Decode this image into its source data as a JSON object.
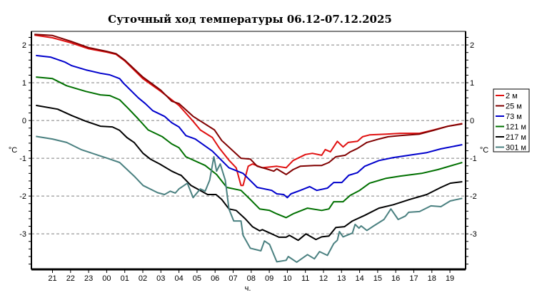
{
  "chart_data": {
    "type": "line",
    "title": "Суточный ход температуры 06.12-07.12.2025",
    "xlabel": "ч.",
    "ylabel": "°C",
    "ylabel_right": "°C",
    "xlim": [
      "19:50",
      "19:52"
    ],
    "ylim": [
      -3.94,
      2.36
    ],
    "x_ticks": [
      "21",
      "22",
      "23",
      "00",
      "01",
      "02",
      "03",
      "04",
      "05",
      "06",
      "07",
      "08",
      "09",
      "10",
      "11",
      "12",
      "13",
      "14",
      "15",
      "16",
      "17",
      "18",
      "19"
    ],
    "y_ticks": [
      2,
      1,
      0,
      -1,
      -2,
      -3
    ],
    "grid": "horizontal dashed",
    "legend_position": "right",
    "series": [
      {
        "name": "2 м",
        "color": "#e01010",
        "points": [
          [
            "20:00",
            2.26
          ],
          [
            "21:00",
            2.19
          ],
          [
            "22:00",
            2.06
          ],
          [
            "23:00",
            1.9
          ],
          [
            "00:00",
            1.81
          ],
          [
            "00:31",
            1.75
          ],
          [
            "01:00",
            1.58
          ],
          [
            "02:00",
            1.11
          ],
          [
            "03:00",
            0.77
          ],
          [
            "04:00",
            0.4
          ],
          [
            "04:47",
            -0.02
          ],
          [
            "05:11",
            -0.25
          ],
          [
            "05:51",
            -0.45
          ],
          [
            "06:15",
            -0.74
          ],
          [
            "06:46",
            -1.05
          ],
          [
            "07:10",
            -1.25
          ],
          [
            "07:26",
            -1.72
          ],
          [
            "07:33",
            -1.72
          ],
          [
            "07:50",
            -1.21
          ],
          [
            "08:04",
            -1.15
          ],
          [
            "08:37",
            -1.25
          ],
          [
            "09:25",
            -1.21
          ],
          [
            "09:56",
            -1.25
          ],
          [
            "10:19",
            -1.06
          ],
          [
            "11:00",
            -0.9
          ],
          [
            "11:23",
            -0.87
          ],
          [
            "11:54",
            -0.92
          ],
          [
            "12:06",
            -0.77
          ],
          [
            "12:23",
            -0.83
          ],
          [
            "12:46",
            -0.55
          ],
          [
            "13:05",
            -0.7
          ],
          [
            "13:22",
            -0.58
          ],
          [
            "13:53",
            -0.55
          ],
          [
            "14:10",
            -0.43
          ],
          [
            "14:33",
            -0.38
          ],
          [
            "15:28",
            -0.36
          ],
          [
            "16:15",
            -0.34
          ],
          [
            "17:19",
            -0.34
          ],
          [
            "18:06",
            -0.25
          ],
          [
            "18:54",
            -0.15
          ],
          [
            "19:41",
            -0.08
          ]
        ]
      },
      {
        "name": "25 м",
        "color": "#800000",
        "points": [
          [
            "20:00",
            2.28
          ],
          [
            "21:00",
            2.25
          ],
          [
            "22:00",
            2.1
          ],
          [
            "23:00",
            1.93
          ],
          [
            "00:00",
            1.83
          ],
          [
            "00:31",
            1.77
          ],
          [
            "01:00",
            1.6
          ],
          [
            "02:00",
            1.15
          ],
          [
            "03:00",
            0.8
          ],
          [
            "03:36",
            0.51
          ],
          [
            "04:00",
            0.45
          ],
          [
            "04:47",
            0.11
          ],
          [
            "05:58",
            -0.25
          ],
          [
            "06:22",
            -0.53
          ],
          [
            "07:26",
            -1.0
          ],
          [
            "07:57",
            -1.02
          ],
          [
            "08:20",
            -1.21
          ],
          [
            "08:51",
            -1.28
          ],
          [
            "09:15",
            -1.34
          ],
          [
            "09:25",
            -1.28
          ],
          [
            "09:56",
            -1.43
          ],
          [
            "10:19",
            -1.3
          ],
          [
            "10:43",
            -1.21
          ],
          [
            "11:30",
            -1.19
          ],
          [
            "11:54",
            -1.19
          ],
          [
            "12:18",
            -1.11
          ],
          [
            "12:41",
            -0.96
          ],
          [
            "13:12",
            -0.92
          ],
          [
            "13:29",
            -0.83
          ],
          [
            "13:53",
            -0.74
          ],
          [
            "14:24",
            -0.58
          ],
          [
            "15:04",
            -0.49
          ],
          [
            "15:35",
            -0.43
          ],
          [
            "16:15",
            -0.4
          ],
          [
            "17:19",
            -0.36
          ],
          [
            "18:06",
            -0.26
          ],
          [
            "18:54",
            -0.15
          ],
          [
            "19:41",
            -0.09
          ]
        ]
      },
      {
        "name": "73 м",
        "color": "#0000cc",
        "points": [
          [
            "20:05",
            1.72
          ],
          [
            "20:53",
            1.68
          ],
          [
            "21:40",
            1.55
          ],
          [
            "22:04",
            1.45
          ],
          [
            "22:51",
            1.34
          ],
          [
            "23:39",
            1.25
          ],
          [
            "00:10",
            1.21
          ],
          [
            "00:43",
            1.11
          ],
          [
            "00:57",
            0.98
          ],
          [
            "01:45",
            0.6
          ],
          [
            "02:08",
            0.45
          ],
          [
            "02:33",
            0.26
          ],
          [
            "03:12",
            0.11
          ],
          [
            "03:36",
            -0.06
          ],
          [
            "04:00",
            -0.17
          ],
          [
            "04:23",
            -0.4
          ],
          [
            "04:54",
            -0.49
          ],
          [
            "05:51",
            -0.81
          ],
          [
            "06:46",
            -1.25
          ],
          [
            "07:33",
            -1.4
          ],
          [
            "08:20",
            -1.77
          ],
          [
            "09:08",
            -1.85
          ],
          [
            "09:25",
            -1.94
          ],
          [
            "09:48",
            -1.96
          ],
          [
            "10:00",
            -2.04
          ],
          [
            "10:12",
            -1.94
          ],
          [
            "10:43",
            -1.85
          ],
          [
            "11:14",
            -1.75
          ],
          [
            "11:38",
            -1.85
          ],
          [
            "12:13",
            -1.79
          ],
          [
            "12:34",
            -1.64
          ],
          [
            "13:01",
            -1.64
          ],
          [
            "13:24",
            -1.45
          ],
          [
            "13:53",
            -1.38
          ],
          [
            "14:17",
            -1.21
          ],
          [
            "15:04",
            -1.06
          ],
          [
            "15:52",
            -0.98
          ],
          [
            "17:02",
            -0.9
          ],
          [
            "17:43",
            -0.85
          ],
          [
            "18:30",
            -0.75
          ],
          [
            "19:41",
            -0.64
          ]
        ]
      },
      {
        "name": "121 м",
        "color": "#007000",
        "points": [
          [
            "20:05",
            1.15
          ],
          [
            "21:00",
            1.11
          ],
          [
            "21:47",
            0.92
          ],
          [
            "22:51",
            0.77
          ],
          [
            "23:39",
            0.68
          ],
          [
            "00:10",
            0.66
          ],
          [
            "00:43",
            0.55
          ],
          [
            "01:14",
            0.3
          ],
          [
            "01:45",
            0.04
          ],
          [
            "02:18",
            -0.25
          ],
          [
            "03:05",
            -0.43
          ],
          [
            "03:36",
            -0.62
          ],
          [
            "04:00",
            -0.72
          ],
          [
            "04:23",
            -0.96
          ],
          [
            "05:27",
            -1.19
          ],
          [
            "06:05",
            -1.43
          ],
          [
            "06:39",
            -1.77
          ],
          [
            "07:26",
            -1.85
          ],
          [
            "07:57",
            -2.09
          ],
          [
            "08:28",
            -2.34
          ],
          [
            "09:01",
            -2.38
          ],
          [
            "09:25",
            -2.47
          ],
          [
            "09:56",
            -2.57
          ],
          [
            "10:19",
            -2.47
          ],
          [
            "11:07",
            -2.32
          ],
          [
            "11:54",
            -2.38
          ],
          [
            "12:18",
            -2.34
          ],
          [
            "12:34",
            -2.15
          ],
          [
            "13:05",
            -2.15
          ],
          [
            "13:29",
            -1.98
          ],
          [
            "14:00",
            -1.85
          ],
          [
            "14:33",
            -1.66
          ],
          [
            "15:28",
            -1.53
          ],
          [
            "16:15",
            -1.47
          ],
          [
            "17:26",
            -1.4
          ],
          [
            "18:20",
            -1.3
          ],
          [
            "19:41",
            -1.11
          ]
        ]
      },
      {
        "name": "217 м",
        "color": "#000000",
        "points": [
          [
            "20:05",
            0.4
          ],
          [
            "21:17",
            0.3
          ],
          [
            "22:04",
            0.13
          ],
          [
            "22:51",
            -0.02
          ],
          [
            "23:39",
            -0.15
          ],
          [
            "00:19",
            -0.17
          ],
          [
            "00:43",
            -0.26
          ],
          [
            "01:07",
            -0.45
          ],
          [
            "01:31",
            -0.58
          ],
          [
            "02:01",
            -0.87
          ],
          [
            "02:25",
            -1.02
          ],
          [
            "02:56",
            -1.15
          ],
          [
            "03:36",
            -1.34
          ],
          [
            "04:00",
            -1.43
          ],
          [
            "04:07",
            -1.45
          ],
          [
            "04:40",
            -1.72
          ],
          [
            "05:35",
            -1.96
          ],
          [
            "06:03",
            -1.96
          ],
          [
            "06:22",
            -2.09
          ],
          [
            "06:46",
            -2.34
          ],
          [
            "07:10",
            -2.38
          ],
          [
            "07:40",
            -2.6
          ],
          [
            "08:04",
            -2.81
          ],
          [
            "08:28",
            -2.92
          ],
          [
            "08:37",
            -2.89
          ],
          [
            "09:08",
            -3.0
          ],
          [
            "09:32",
            -3.09
          ],
          [
            "09:56",
            -3.09
          ],
          [
            "10:07",
            -3.04
          ],
          [
            "10:36",
            -3.17
          ],
          [
            "11:02",
            -3.0
          ],
          [
            "11:35",
            -3.15
          ],
          [
            "11:54",
            -3.08
          ],
          [
            "12:18",
            -3.06
          ],
          [
            "12:41",
            -2.83
          ],
          [
            "13:10",
            -2.81
          ],
          [
            "13:36",
            -2.66
          ],
          [
            "14:17",
            -2.51
          ],
          [
            "15:04",
            -2.32
          ],
          [
            "15:52",
            -2.23
          ],
          [
            "16:46",
            -2.09
          ],
          [
            "17:43",
            -1.96
          ],
          [
            "18:30",
            -1.77
          ],
          [
            "19:01",
            -1.66
          ],
          [
            "19:41",
            -1.62
          ]
        ]
      },
      {
        "name": "301 м",
        "color": "#4a8080",
        "points": [
          [
            "20:05",
            -0.42
          ],
          [
            "21:00",
            -0.49
          ],
          [
            "21:47",
            -0.58
          ],
          [
            "22:35",
            -0.77
          ],
          [
            "23:32",
            -0.92
          ],
          [
            "00:02",
            -1.0
          ],
          [
            "00:43",
            -1.11
          ],
          [
            "01:31",
            -1.47
          ],
          [
            "02:01",
            -1.72
          ],
          [
            "02:49",
            -1.91
          ],
          [
            "03:12",
            -1.96
          ],
          [
            "03:31",
            -1.87
          ],
          [
            "03:48",
            -1.92
          ],
          [
            "04:00",
            -1.81
          ],
          [
            "04:28",
            -1.66
          ],
          [
            "04:47",
            -2.04
          ],
          [
            "05:11",
            -1.81
          ],
          [
            "05:27",
            -1.87
          ],
          [
            "05:42",
            -1.58
          ],
          [
            "05:56",
            -0.96
          ],
          [
            "06:05",
            -1.34
          ],
          [
            "06:17",
            -1.15
          ],
          [
            "06:34",
            -1.58
          ],
          [
            "06:46",
            -2.34
          ],
          [
            "07:02",
            -2.66
          ],
          [
            "07:26",
            -2.66
          ],
          [
            "07:33",
            -3.04
          ],
          [
            "07:57",
            -3.38
          ],
          [
            "08:32",
            -3.45
          ],
          [
            "08:44",
            -3.19
          ],
          [
            "09:01",
            -3.28
          ],
          [
            "09:25",
            -3.74
          ],
          [
            "09:56",
            -3.7
          ],
          [
            "10:03",
            -3.6
          ],
          [
            "10:31",
            -3.75
          ],
          [
            "11:07",
            -3.55
          ],
          [
            "11:30",
            -3.66
          ],
          [
            "11:47",
            -3.47
          ],
          [
            "12:13",
            -3.57
          ],
          [
            "12:34",
            -3.26
          ],
          [
            "12:46",
            -3.17
          ],
          [
            "12:53",
            -2.94
          ],
          [
            "13:05",
            -3.08
          ],
          [
            "13:36",
            -2.98
          ],
          [
            "13:45",
            -2.75
          ],
          [
            "13:58",
            -2.85
          ],
          [
            "14:05",
            -2.79
          ],
          [
            "14:24",
            -2.91
          ],
          [
            "14:47",
            -2.79
          ],
          [
            "15:21",
            -2.62
          ],
          [
            "15:44",
            -2.34
          ],
          [
            "16:08",
            -2.62
          ],
          [
            "16:32",
            -2.53
          ],
          [
            "16:43",
            -2.43
          ],
          [
            "17:19",
            -2.41
          ],
          [
            "17:57",
            -2.26
          ],
          [
            "18:30",
            -2.28
          ],
          [
            "19:01",
            -2.13
          ],
          [
            "19:41",
            -2.06
          ]
        ]
      }
    ]
  }
}
